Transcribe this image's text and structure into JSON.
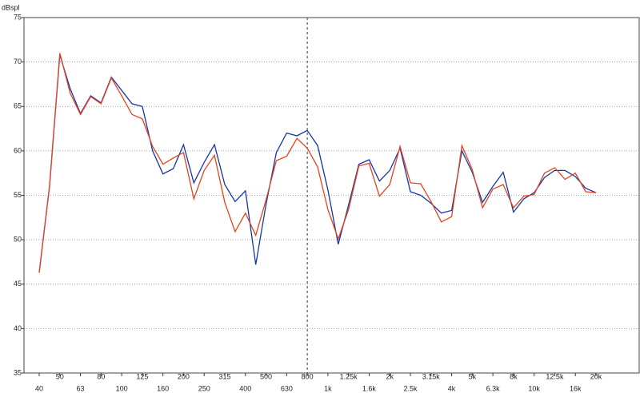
{
  "chart_data": {
    "type": "line",
    "y_label": "dBspl",
    "categories": [
      "40",
      null,
      "50",
      null,
      "63",
      null,
      "80",
      null,
      "100",
      null,
      "125",
      null,
      "160",
      null,
      "200",
      null,
      "250",
      null,
      "315",
      null,
      "400",
      null,
      "500",
      null,
      "630",
      null,
      "800",
      null,
      "1k",
      null,
      "1.25k",
      null,
      "1.6k",
      null,
      "2k",
      null,
      "2.5k",
      null,
      "3.15k",
      null,
      "4k",
      null,
      "5k",
      null,
      "6.3k",
      null,
      "8k",
      null,
      "10k",
      null,
      "12.5k",
      null,
      "16k",
      null,
      "20k"
    ],
    "series": [
      {
        "color": "#1436a8",
        "values": [
          46.3,
          56,
          70.8,
          67,
          64.2,
          66.2,
          65.4,
          68.3,
          66.8,
          65.3,
          65,
          60,
          57.4,
          58,
          60.7,
          56.4,
          58.7,
          60.7,
          56.2,
          54.3,
          55.5,
          47.2,
          54,
          59.8,
          62,
          61.7,
          62.3,
          60.6,
          55.6,
          49.5,
          53.9,
          58.5,
          59,
          56.6,
          57.8,
          60.3,
          55.4,
          55,
          54.1,
          53,
          53.3,
          60,
          57.6,
          54.2,
          56,
          57.6,
          53.1,
          54.6,
          55.3,
          57,
          57.8,
          57.8,
          57.1,
          55.8,
          55.3
        ]
      },
      {
        "color": "#e5431e",
        "values": [
          46.3,
          56,
          71,
          66.5,
          64.1,
          66.1,
          65.3,
          68.2,
          66.2,
          64.1,
          63.6,
          60.5,
          58.5,
          59.2,
          59.8,
          54.6,
          57.8,
          59.5,
          54.2,
          50.9,
          53,
          50.5,
          54.5,
          58.9,
          59.4,
          61.4,
          60.3,
          58.2,
          53.4,
          50.1,
          53.4,
          58.3,
          58.6,
          54.9,
          56.2,
          60.5,
          56.4,
          56.3,
          54.3,
          52,
          52.6,
          60.6,
          57.9,
          53.6,
          55.7,
          56.2,
          53.6,
          54.9,
          55.1,
          57.5,
          58.1,
          56.8,
          57.5,
          55.4,
          55.3
        ]
      }
    ],
    "ylim": [
      35,
      75
    ],
    "yticks": [
      35,
      40,
      45,
      50,
      55,
      60,
      65,
      70,
      75
    ],
    "grid": true,
    "marker_line": "800"
  }
}
